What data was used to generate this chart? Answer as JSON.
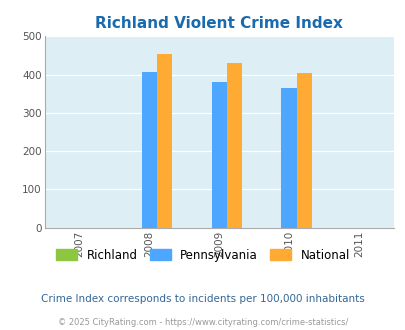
{
  "title": "Richland Violent Crime Index",
  "all_years": [
    2007,
    2008,
    2009,
    2010,
    2011
  ],
  "data_years": [
    2008,
    2009,
    2010
  ],
  "richland": [
    0,
    0,
    0
  ],
  "pennsylvania": [
    408,
    380,
    365
  ],
  "national": [
    453,
    430,
    405
  ],
  "bar_width": 0.22,
  "colors": {
    "richland": "#8dc63f",
    "pennsylvania": "#4da6ff",
    "national": "#ffaa33"
  },
  "ylim": [
    0,
    500
  ],
  "yticks": [
    0,
    100,
    200,
    300,
    400,
    500
  ],
  "background_color": "#ffffff",
  "plot_bg": "#ddeef4",
  "title_color": "#1a6bad",
  "title_fontsize": 11,
  "legend_labels": [
    "Richland",
    "Pennsylvania",
    "National"
  ],
  "note": "Crime Index corresponds to incidents per 100,000 inhabitants",
  "footer": "© 2025 CityRating.com - https://www.cityrating.com/crime-statistics/",
  "note_color": "#336699",
  "footer_color": "#999999"
}
